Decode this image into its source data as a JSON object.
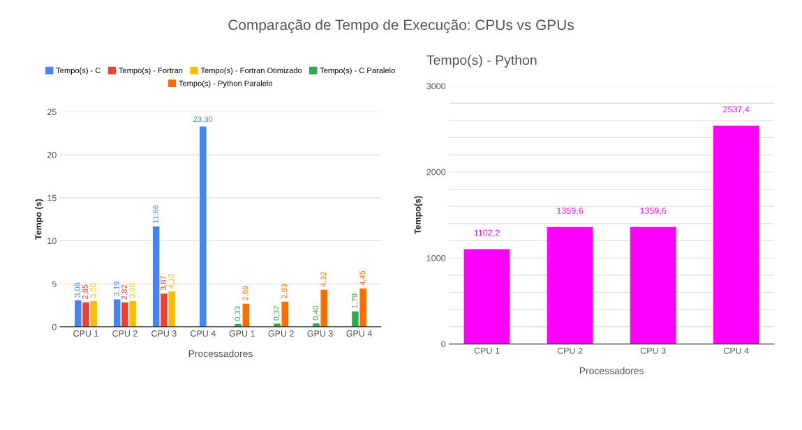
{
  "chart_data": [
    {
      "type": "bar",
      "title": "Comparação de Tempo de Execução: CPUs vs GPUs",
      "xlabel": "Processadores",
      "ylabel": "Tempo (s)",
      "categories": [
        "CPU 1",
        "CPU 2",
        "CPU 3",
        "CPU 4",
        "GPU 1",
        "GPU 2",
        "GPU 3",
        "GPU 4"
      ],
      "series": [
        {
          "name": "Tempo(s) - C",
          "color": "#4285f4",
          "values": [
            3.08,
            3.19,
            11.66,
            23.3,
            null,
            null,
            null,
            null
          ],
          "value_labels": [
            "3,08",
            "3,19",
            "11,66",
            "23,30",
            null,
            null,
            null,
            null
          ]
        },
        {
          "name": "Tempo(s) - Fortran",
          "color": "#ea4335",
          "values": [
            2.85,
            2.82,
            3.87,
            null,
            null,
            null,
            null,
            null
          ],
          "value_labels": [
            "2,85",
            "2,82",
            "3,87",
            null,
            null,
            null,
            null,
            null
          ]
        },
        {
          "name": "Tempo(s) - Fortran Otimizado",
          "color": "#fbbc04",
          "values": [
            3.0,
            3.0,
            4.1,
            null,
            null,
            null,
            null,
            null
          ],
          "value_labels": [
            "3,00",
            "3,00",
            "4,10",
            null,
            null,
            null,
            null,
            null
          ]
        },
        {
          "name": "Tempo(s) - C Paralelo",
          "color": "#34a853",
          "values": [
            null,
            null,
            null,
            null,
            0.33,
            0.37,
            0.4,
            1.79
          ],
          "value_labels": [
            null,
            null,
            null,
            null,
            "0,33",
            "0,37",
            "0,40",
            "1,79"
          ]
        },
        {
          "name": "Tempo(s) - Python Paralelo",
          "color": "#ff6d01",
          "values": [
            null,
            null,
            null,
            null,
            2.69,
            2.93,
            4.32,
            4.45
          ],
          "value_labels": [
            null,
            null,
            null,
            null,
            "2,69",
            "2,93",
            "4,32",
            "4,45"
          ]
        }
      ],
      "ylim": [
        0,
        25
      ],
      "yticks": [
        0,
        5,
        10,
        15,
        20,
        25
      ],
      "grid": "y",
      "legend": "top"
    },
    {
      "type": "bar",
      "title": "Tempo(s) - Python",
      "xlabel": "Processadores",
      "ylabel": "Tempo(s)",
      "categories": [
        "CPU 1",
        "CPU 2",
        "CPU 3",
        "CPU 4"
      ],
      "series": [
        {
          "color": "#ff00ff",
          "values": [
            1102.2,
            1359.6,
            1359.6,
            2537.4
          ],
          "value_labels": [
            "1102,2",
            "1359,6",
            "1359,6",
            "2537,4"
          ]
        }
      ],
      "ylim": [
        0,
        3000
      ],
      "yticks": [
        0,
        {
          "value": 200,
          "label": null
        },
        {
          "value": 400,
          "label": null
        },
        {
          "value": 600,
          "label": null
        },
        {
          "value": 800,
          "label": null
        },
        1000,
        {
          "value": 1200,
          "label": null
        },
        {
          "value": 1400,
          "label": null
        },
        {
          "value": 1600,
          "label": null
        },
        {
          "value": 1800,
          "label": null
        },
        2000,
        {
          "value": 2200,
          "label": null
        },
        {
          "value": 2400,
          "label": null
        },
        {
          "value": 2600,
          "label": null
        },
        {
          "value": 2800,
          "label": null
        },
        3000
      ],
      "grid": "y",
      "legend": false
    }
  ]
}
